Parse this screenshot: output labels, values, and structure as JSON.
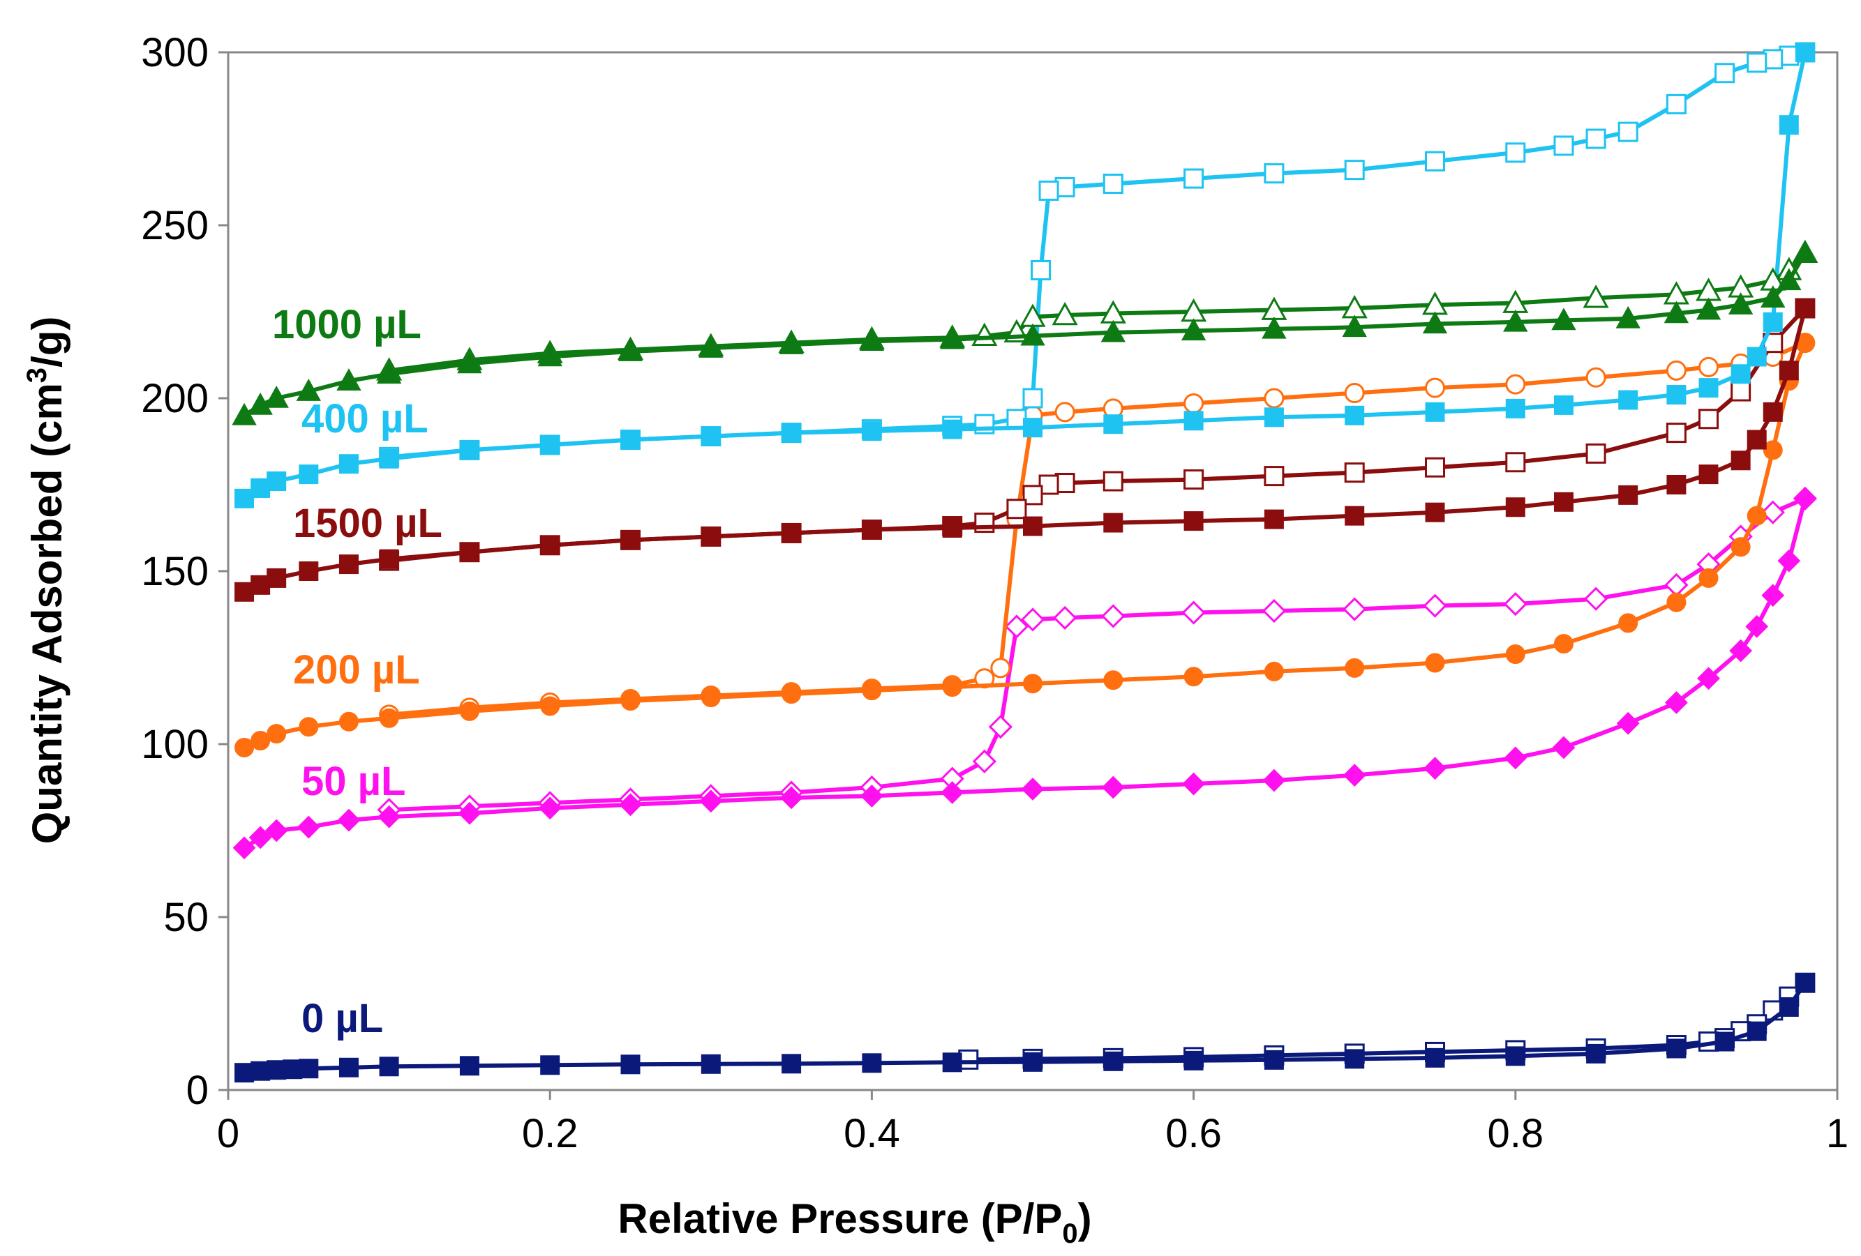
{
  "chart_data": {
    "type": "line",
    "title": "",
    "xlabel": "Relative Pressure (P/P",
    "xlabel_sub": "0",
    "xlabel_tail": ")",
    "ylabel": "Quantity Adsorbed (cm",
    "ylabel_sup": "3",
    "ylabel_tail": "/g)",
    "xlim": [
      0,
      1
    ],
    "ylim": [
      0,
      300
    ],
    "xticks": [
      0,
      0.2,
      0.4,
      0.6,
      0.8,
      1
    ],
    "xtick_labels": [
      "0",
      "0.2",
      "0.4",
      "0.6",
      "0.8",
      "1"
    ],
    "yticks": [
      0,
      50,
      100,
      150,
      200,
      250,
      300
    ],
    "ytick_labels": [
      "0",
      "50",
      "100",
      "150",
      "200",
      "250",
      "300"
    ],
    "grid": false,
    "legend": "inline labels at left of each curve pair",
    "series": [
      {
        "name": "0 µL",
        "label": "0 µL",
        "color": "#0b1a7a",
        "marker": "square",
        "adsorption": {
          "x": [
            0.01,
            0.02,
            0.03,
            0.04,
            0.05,
            0.075,
            0.1,
            0.15,
            0.2,
            0.25,
            0.3,
            0.35,
            0.4,
            0.45,
            0.5,
            0.55,
            0.6,
            0.65,
            0.7,
            0.75,
            0.8,
            0.85,
            0.9,
            0.93,
            0.95,
            0.97,
            0.98
          ],
          "y": [
            5,
            5.5,
            5.8,
            6,
            6.2,
            6.5,
            6.8,
            7,
            7.2,
            7.4,
            7.5,
            7.6,
            7.8,
            8,
            8.1,
            8.3,
            8.5,
            8.7,
            9,
            9.3,
            9.8,
            10.5,
            12,
            14,
            17,
            24,
            31
          ]
        },
        "desorption": {
          "x": [
            0.98,
            0.97,
            0.96,
            0.95,
            0.94,
            0.93,
            0.92,
            0.9,
            0.85,
            0.8,
            0.75,
            0.7,
            0.65,
            0.6,
            0.55,
            0.5,
            0.46
          ],
          "y": [
            31,
            27,
            23,
            19,
            17,
            15,
            14,
            13,
            12,
            11.5,
            11,
            10.5,
            10,
            9.5,
            9.2,
            9,
            8.8
          ]
        }
      },
      {
        "name": "50 µL",
        "label": "50 µL",
        "color": "#ff10ee",
        "marker": "diamond",
        "adsorption": {
          "x": [
            0.01,
            0.02,
            0.03,
            0.05,
            0.075,
            0.1,
            0.15,
            0.2,
            0.25,
            0.3,
            0.35,
            0.4,
            0.45,
            0.5,
            0.55,
            0.6,
            0.65,
            0.7,
            0.75,
            0.8,
            0.83,
            0.87,
            0.9,
            0.92,
            0.94,
            0.95,
            0.96,
            0.97,
            0.98
          ],
          "y": [
            70,
            73,
            75,
            76,
            78,
            79,
            80,
            81.5,
            82.5,
            83.5,
            84.5,
            85,
            86,
            87,
            87.5,
            88.5,
            89.5,
            91,
            93,
            96,
            99,
            106,
            112,
            119,
            127,
            134,
            143,
            153,
            171
          ]
        },
        "desorption": {
          "x": [
            0.98,
            0.96,
            0.94,
            0.92,
            0.9,
            0.85,
            0.8,
            0.75,
            0.7,
            0.65,
            0.6,
            0.55,
            0.52,
            0.5,
            0.49,
            0.48,
            0.47,
            0.45,
            0.4,
            0.35,
            0.3,
            0.25,
            0.2,
            0.15,
            0.1
          ],
          "y": [
            171,
            167,
            160,
            152,
            146,
            142,
            140.5,
            140,
            139,
            138.5,
            138,
            137,
            136.5,
            136,
            134,
            105,
            95,
            90,
            87.5,
            86,
            85,
            84,
            83,
            82,
            81
          ]
        }
      },
      {
        "name": "200 µL",
        "label": "200 µL",
        "color": "#ff6f0f",
        "marker": "circle",
        "adsorption": {
          "x": [
            0.01,
            0.02,
            0.03,
            0.05,
            0.075,
            0.1,
            0.15,
            0.2,
            0.25,
            0.3,
            0.35,
            0.4,
            0.45,
            0.5,
            0.55,
            0.6,
            0.65,
            0.7,
            0.75,
            0.8,
            0.83,
            0.87,
            0.9,
            0.92,
            0.94,
            0.95,
            0.96,
            0.97,
            0.98
          ],
          "y": [
            99,
            101,
            103,
            105,
            106.5,
            107.5,
            109.5,
            111,
            112.5,
            113.5,
            114.5,
            115.5,
            116.5,
            117.5,
            118.5,
            119.5,
            121,
            122,
            123.5,
            126,
            129,
            135,
            141,
            148,
            157,
            166,
            185,
            205,
            216
          ]
        },
        "desorption": {
          "x": [
            0.98,
            0.96,
            0.94,
            0.92,
            0.9,
            0.85,
            0.8,
            0.75,
            0.7,
            0.65,
            0.6,
            0.55,
            0.52,
            0.5,
            0.49,
            0.48,
            0.47,
            0.45,
            0.4,
            0.35,
            0.3,
            0.25,
            0.2,
            0.15,
            0.1
          ],
          "y": [
            216,
            212,
            210,
            209,
            208,
            206,
            204,
            203,
            201.5,
            200,
            198.5,
            197,
            196,
            195,
            165,
            122,
            119,
            117,
            116,
            115,
            114,
            113,
            112,
            110.5,
            108.5
          ]
        }
      },
      {
        "name": "1500 µL",
        "label": "1500 µL",
        "color": "#8b0d0d",
        "marker": "square",
        "adsorption": {
          "x": [
            0.01,
            0.02,
            0.03,
            0.05,
            0.075,
            0.1,
            0.15,
            0.2,
            0.25,
            0.3,
            0.35,
            0.4,
            0.45,
            0.5,
            0.55,
            0.6,
            0.65,
            0.7,
            0.75,
            0.8,
            0.83,
            0.87,
            0.9,
            0.92,
            0.94,
            0.95,
            0.96,
            0.97,
            0.98
          ],
          "y": [
            144,
            146,
            148,
            150,
            152,
            153.5,
            155.5,
            157.5,
            159,
            160,
            161,
            162,
            162.5,
            163,
            164,
            164.5,
            165,
            166,
            167,
            168.5,
            170,
            172,
            175,
            178,
            182,
            188,
            196,
            208,
            226
          ]
        },
        "desorption": {
          "x": [
            0.98,
            0.96,
            0.94,
            0.92,
            0.9,
            0.85,
            0.8,
            0.75,
            0.7,
            0.65,
            0.6,
            0.55,
            0.52,
            0.51,
            0.5,
            0.49,
            0.47,
            0.45,
            0.4,
            0.35,
            0.3,
            0.25,
            0.2,
            0.15,
            0.1
          ],
          "y": [
            226,
            216,
            202,
            194,
            190,
            184,
            181.5,
            180,
            178.5,
            177.5,
            176.5,
            176,
            175.5,
            175,
            172,
            168,
            164,
            163,
            162,
            161,
            160,
            159,
            157.5,
            155.5,
            153
          ]
        }
      },
      {
        "name": "400 µL",
        "label": "400 µL",
        "color": "#1ec3f2",
        "marker": "square",
        "adsorption": {
          "x": [
            0.01,
            0.02,
            0.03,
            0.05,
            0.075,
            0.1,
            0.15,
            0.2,
            0.25,
            0.3,
            0.35,
            0.4,
            0.45,
            0.5,
            0.55,
            0.6,
            0.65,
            0.7,
            0.75,
            0.8,
            0.83,
            0.87,
            0.9,
            0.92,
            0.94,
            0.95,
            0.96,
            0.97,
            0.98
          ],
          "y": [
            171,
            174,
            176,
            178,
            181,
            182.5,
            185,
            186.5,
            188,
            189,
            190,
            190.5,
            191,
            191.5,
            192.5,
            193.5,
            194.5,
            195,
            196,
            197,
            198,
            199.5,
            201,
            203,
            207,
            212,
            222,
            279,
            300
          ]
        },
        "desorption": {
          "x": [
            0.98,
            0.97,
            0.96,
            0.95,
            0.93,
            0.9,
            0.87,
            0.85,
            0.83,
            0.8,
            0.75,
            0.7,
            0.65,
            0.6,
            0.55,
            0.52,
            0.51,
            0.505,
            0.5,
            0.49,
            0.47,
            0.45,
            0.4,
            0.35,
            0.3,
            0.25,
            0.2,
            0.15,
            0.1
          ],
          "y": [
            300,
            299,
            298,
            297,
            294,
            285,
            277,
            275,
            273,
            271,
            268.5,
            266,
            265,
            263.5,
            262,
            261,
            260,
            237,
            200,
            194,
            192.5,
            192,
            191,
            190,
            189,
            188,
            186.5,
            185,
            183
          ]
        }
      },
      {
        "name": "1000 µL",
        "label": "1000 µL",
        "color": "#0e7a13",
        "marker": "triangle",
        "adsorption": {
          "x": [
            0.01,
            0.02,
            0.03,
            0.05,
            0.075,
            0.1,
            0.15,
            0.2,
            0.25,
            0.3,
            0.35,
            0.4,
            0.45,
            0.5,
            0.55,
            0.6,
            0.65,
            0.7,
            0.75,
            0.8,
            0.83,
            0.87,
            0.9,
            0.92,
            0.94,
            0.96,
            0.97,
            0.98
          ],
          "y": [
            195,
            198,
            200,
            202,
            205,
            207,
            210,
            212,
            213.5,
            214.5,
            215.5,
            216.5,
            217,
            218,
            219,
            219.5,
            220,
            220.5,
            221.5,
            222,
            222.5,
            223,
            224.5,
            225.5,
            227,
            229,
            234,
            242
          ]
        },
        "desorption": {
          "x": [
            0.98,
            0.97,
            0.96,
            0.94,
            0.92,
            0.9,
            0.85,
            0.8,
            0.75,
            0.7,
            0.65,
            0.6,
            0.55,
            0.52,
            0.5,
            0.49,
            0.47,
            0.45,
            0.4,
            0.35,
            0.3,
            0.25,
            0.2,
            0.15,
            0.1
          ],
          "y": [
            242,
            237,
            234,
            232,
            231,
            230,
            229,
            227.5,
            227,
            226,
            225.5,
            225,
            224.5,
            224,
            223.5,
            219,
            218,
            217.5,
            217,
            216,
            215,
            214,
            213,
            211,
            208
          ]
        }
      }
    ]
  }
}
